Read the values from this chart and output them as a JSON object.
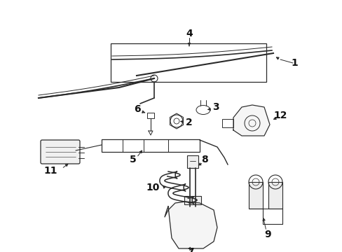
{
  "background_color": "#ffffff",
  "line_color": "#2a2a2a",
  "label_color": "#111111",
  "font_size": 10,
  "fig_width": 4.89,
  "fig_height": 3.6,
  "dpi": 100
}
